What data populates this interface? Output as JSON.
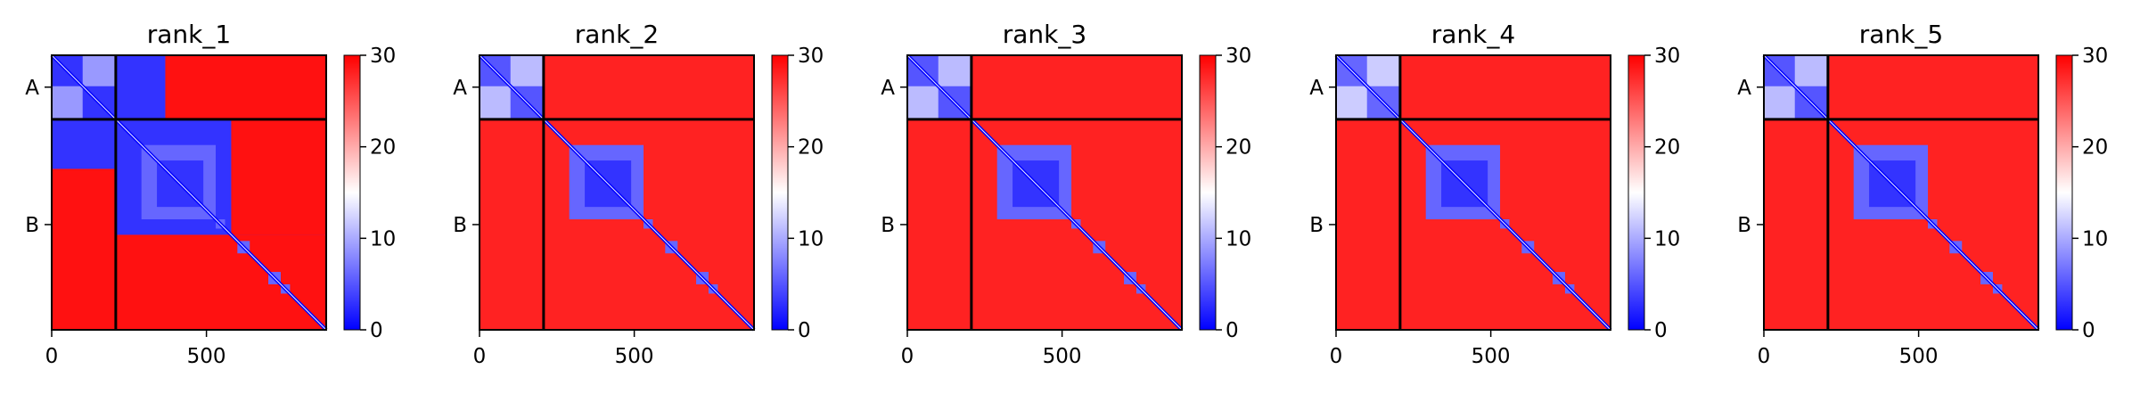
{
  "chart_data": {
    "type": "heatmap",
    "colormap": {
      "name": "bwr",
      "low": "#0000ff",
      "mid": "#ffffff",
      "high": "#ff0000"
    },
    "colorbar": {
      "range": [
        0,
        30
      ],
      "ticks": [
        "0",
        "10",
        "20",
        "30"
      ]
    },
    "matrix_extent": [
      0,
      887
    ],
    "chain_boundary": 207,
    "x_ticks": [
      {
        "value": 0,
        "label": "0"
      },
      {
        "value": 500,
        "label": "500"
      }
    ],
    "y_ticks": [
      {
        "value": 103,
        "label": "A"
      },
      {
        "value": 547,
        "label": "B"
      }
    ],
    "panels": [
      {
        "title": "rank_1",
        "ab_inter": 3,
        "intra_a": 3,
        "intra_b": 3
      },
      {
        "title": "rank_2",
        "ab_inter": 28,
        "intra_a": 5,
        "intra_b": 3
      },
      {
        "title": "rank_3",
        "ab_inter": 28,
        "intra_a": 5,
        "intra_b": 3
      },
      {
        "title": "rank_4",
        "ab_inter": 28,
        "intra_a": 6,
        "intra_b": 3
      },
      {
        "title": "rank_5",
        "ab_inter": 28,
        "intra_a": 5,
        "intra_b": 3
      }
    ]
  }
}
